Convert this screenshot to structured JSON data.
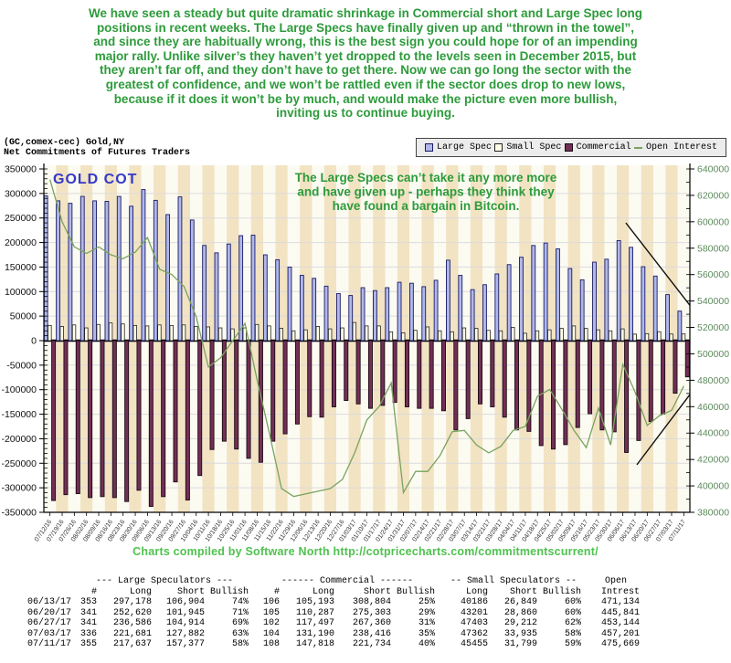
{
  "commentary": {
    "color": "#2D9B3B",
    "lines": [
      "We have seen a steady but quite dramatic shrinkage in Commercial short and Large Spec long",
      "positions in recent weeks. The Large Specs have finally given up and “thrown in the towel”,",
      "and since they are habitually wrong, this is the best sign you could hope for of an impending",
      "major rally. Unlike silver’s they haven’t yet dropped to the levels seen in December 2015, but",
      "they aren’t far off, and they don’t have to get there. Now we can go long the sector with the",
      "greatest of confidence, and we won’t be rattled even if the sector does drop to new lows,",
      "because if it does it won’t be by much, and would make the picture even more bullish,",
      "inviting us to continue buying."
    ]
  },
  "chart_header": {
    "line1": "(GC,comex-cec) Gold,NY",
    "line2": "Net Commitments of Futures Traders"
  },
  "legend": {
    "items": [
      {
        "label": "Large Spec",
        "swatch": "#B0B8E8",
        "border": "#1A1A66",
        "type": "square"
      },
      {
        "label": "Small Spec",
        "swatch": "#FFFFE8",
        "border": "#222222",
        "type": "square"
      },
      {
        "label": "Commercial",
        "swatch": "#722F55",
        "border": "#1A0A14",
        "type": "square"
      },
      {
        "label": "Open Interest",
        "swatch": "#79A35E",
        "type": "dash"
      }
    ]
  },
  "chart_data": {
    "type": "bar",
    "inplot_title": {
      "text": "GOLD COT",
      "color": "#3439C8"
    },
    "annotation": {
      "color": "#2D9B3B",
      "lines": [
        "The Large Specs can’t take it any more more",
        "and have given up - perhaps they think they",
        "have found a bargain in Bitcoin."
      ]
    },
    "left_axis": {
      "min": -350000,
      "max": 350000,
      "tick": 50000,
      "minor_tick": 10000,
      "label_color": "#111111"
    },
    "right_axis": {
      "min": 380000,
      "max": 640000,
      "tick": 20000,
      "minor_tick": 10000,
      "label_color": "#5C8A5C"
    },
    "grid": {
      "h_step": 50000,
      "color": "#DBDBDB",
      "stripe_colors": [
        "#FCFBF2",
        "#F2E3C3"
      ]
    },
    "categories": [
      "07/12/16",
      "07/19/16",
      "07/26/16",
      "08/02/16",
      "08/09/16",
      "08/16/16",
      "08/23/16",
      "08/30/16",
      "09/06/16",
      "09/13/16",
      "09/20/16",
      "09/27/16",
      "10/04/16",
      "10/11/16",
      "10/18/16",
      "10/25/16",
      "11/01/16",
      "11/08/16",
      "11/15/16",
      "11/22/16",
      "11/29/16",
      "12/06/16",
      "12/13/16",
      "12/20/16",
      "12/27/16",
      "01/03/17",
      "01/10/17",
      "01/17/17",
      "01/24/17",
      "01/31/17",
      "02/07/17",
      "02/14/17",
      "02/21/17",
      "02/28/17",
      "03/07/17",
      "03/14/17",
      "03/21/17",
      "03/28/17",
      "04/04/17",
      "04/11/17",
      "04/18/17",
      "04/25/17",
      "05/02/17",
      "05/09/17",
      "05/16/17",
      "05/23/17",
      "05/30/17",
      "06/06/17",
      "06/13/17",
      "06/20/17",
      "06/27/17",
      "07/03/17",
      "07/11/17"
    ],
    "series": [
      {
        "name": "Large Spec",
        "kind": "bar",
        "axis": "left",
        "fill": "#B0B8E8",
        "stroke": "#1A1A66",
        "values": [
          295000,
          285000,
          280000,
          294000,
          285000,
          284000,
          294000,
          274000,
          308000,
          286000,
          257000,
          293000,
          246000,
          194000,
          179000,
          197000,
          214000,
          215000,
          175000,
          165000,
          150000,
          133000,
          127000,
          111000,
          96000,
          92000,
          108000,
          102000,
          108000,
          119000,
          117000,
          110000,
          123000,
          164000,
          133000,
          104000,
          114000,
          136000,
          155000,
          170000,
          194000,
          199000,
          187000,
          147000,
          124000,
          160000,
          166000,
          204000,
          190274,
          150675,
          131672,
          93799,
          60260
        ]
      },
      {
        "name": "Small Spec",
        "kind": "bar",
        "axis": "left",
        "fill": "#FFFFE8",
        "stroke": "#222222",
        "values": [
          31000,
          29000,
          32000,
          26000,
          33000,
          36000,
          34000,
          31000,
          30000,
          32000,
          31000,
          32000,
          29000,
          28000,
          26000,
          24000,
          26000,
          33000,
          30000,
          25000,
          20000,
          22000,
          29000,
          24000,
          26000,
          37000,
          30000,
          30000,
          18000,
          16000,
          21000,
          28000,
          20000,
          18000,
          26000,
          25000,
          21000,
          20000,
          27000,
          15000,
          20000,
          22000,
          25000,
          30000,
          25000,
          22000,
          20000,
          24000,
          13337,
          14341,
          18191,
          13427,
          13656
        ]
      },
      {
        "name": "Commercial",
        "kind": "bar",
        "axis": "left",
        "fill": "#722F55",
        "stroke": "#1A0A14",
        "values": [
          -326000,
          -314000,
          -312000,
          -320000,
          -318000,
          -320000,
          -328000,
          -305000,
          -338000,
          -318000,
          -288000,
          -325000,
          -275000,
          -222000,
          -205000,
          -221000,
          -240000,
          -248000,
          -205000,
          -190000,
          -170000,
          -155000,
          -156000,
          -135000,
          -122000,
          -129000,
          -138000,
          -132000,
          -126000,
          -135000,
          -138000,
          -138000,
          -143000,
          -182000,
          -159000,
          -129000,
          -135000,
          -156000,
          -182000,
          -185000,
          -214000,
          -221000,
          -212000,
          -177000,
          -149000,
          -182000,
          -186000,
          -228000,
          -203611,
          -165016,
          -149863,
          -107226,
          -73916
        ]
      },
      {
        "name": "Open Interest",
        "kind": "line",
        "axis": "right",
        "stroke": "#79A35E",
        "values": [
          632000,
          600000,
          581000,
          576000,
          581000,
          575000,
          572000,
          577000,
          588000,
          564000,
          560000,
          551000,
          528000,
          490000,
          497000,
          510000,
          523000,
          480000,
          440000,
          398000,
          392000,
          394000,
          396000,
          398000,
          405000,
          425000,
          450000,
          460000,
          478000,
          395000,
          411000,
          411000,
          423000,
          441000,
          442000,
          431000,
          425000,
          430000,
          442000,
          445000,
          468000,
          473000,
          458000,
          442000,
          429000,
          459000,
          431000,
          492000,
          471134,
          445841,
          453144,
          457201,
          475669
        ]
      }
    ],
    "trendlines": [
      {
        "x1_week": 47.75,
        "y1_value": 240000,
        "x2_week": 53.0,
        "y2_value": 72000,
        "color": "#111111"
      },
      {
        "x1_week": 48.65,
        "y1_value": -253000,
        "x2_week": 53.0,
        "y2_value": -110000,
        "color": "#111111"
      }
    ]
  },
  "caption": {
    "text": "Charts compiled by Software North  http://cotpricecharts.com/commitmentscurrent/",
    "color": "#4FC24F"
  },
  "table": {
    "group_headers": [
      "--- Large Speculators ---",
      "------ Commercial ------",
      "-- Small Speculators --",
      "Open"
    ],
    "col_headers": [
      "",
      "#",
      "Long",
      "Short",
      "Bullish",
      "#",
      "Long",
      "Short",
      "Bullish",
      "Long",
      "Short",
      "Bullish",
      "Intrest"
    ],
    "rows": [
      [
        "06/13/17",
        "353",
        "297,178",
        "106,904",
        "74%",
        "106",
        "105,193",
        "308,804",
        "25%",
        "40186",
        "26,849",
        "60%",
        "471,134"
      ],
      [
        "06/20/17",
        "341",
        "252,620",
        "101,945",
        "71%",
        "105",
        "110,287",
        "275,303",
        "29%",
        "43201",
        "28,860",
        "60%",
        "445,841"
      ],
      [
        "06/27/17",
        "341",
        "236,586",
        "104,914",
        "69%",
        "102",
        "117,497",
        "267,360",
        "31%",
        "47403",
        "29,212",
        "62%",
        "453,144"
      ],
      [
        "07/03/17",
        "336",
        "221,681",
        "127,882",
        "63%",
        "104",
        "131,190",
        "238,416",
        "35%",
        "47362",
        "33,935",
        "58%",
        "457,201"
      ],
      [
        "07/11/17",
        "355",
        "217,637",
        "157,377",
        "58%",
        "108",
        "147,818",
        "221,734",
        "40%",
        "45455",
        "31,799",
        "59%",
        "475,669"
      ]
    ]
  }
}
